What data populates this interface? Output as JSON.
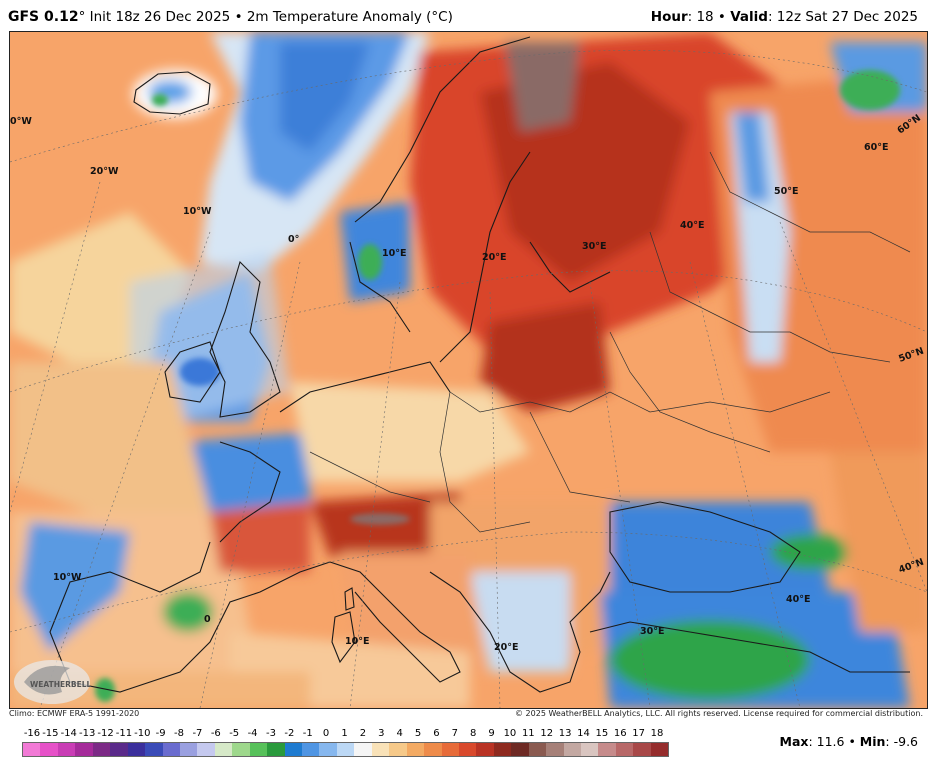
{
  "header": {
    "model": "GFS 0.12",
    "degree": "°",
    "init_text": " Init 18z 26 Dec 2025 • 2m Temperature Anomaly (°C)",
    "hour_label": "Hour",
    "hour_value": ": 18 • ",
    "valid_label": "Valid",
    "valid_value": ": 12z Sat 27 Dec 2025"
  },
  "map": {
    "labels": {
      "lon_30w_60n": "0°W",
      "lon_20w": "20°W",
      "lon_10w_north": "10°W",
      "lon_0_north": "0°",
      "lon_10e_north": "10°E",
      "lon_20e_north": "20°E",
      "lon_30e_north": "30°E",
      "lon_40e_north": "40°E",
      "lon_50e": "50°E",
      "lon_60e": "60°E",
      "lat_60n": "60°N",
      "lat_50n": "50°N",
      "lat_40n": "40°N",
      "lon_10w_south": "10°W",
      "lon_0_south": "0",
      "lon_10e_south": "10°E",
      "lon_20e_south": "20°E",
      "lon_30e_south": "30°E",
      "lon_40e_south": "40°E"
    },
    "logo_text": "WEATHERBELL",
    "colors": {
      "sea_warm": "#f7a469",
      "land_hot": "#d8432a",
      "land_very_hot": "#a0321f",
      "extreme": "#8a6a66",
      "cold_sea": "#4f8fe0",
      "cold_light": "#b8d7f5",
      "near_zero": "#f9ecd0",
      "negative_green": "#2da84a"
    }
  },
  "credits": {
    "climo": "Climo: ECMWF ERA-5 1991-2020",
    "copyright": "© 2025 WeatherBELL Analytics, LLC. All rights reserved. License required for commercial distribution."
  },
  "colorbar": {
    "ticks": [
      "-16",
      "-15",
      "-14",
      "-13",
      "-12",
      "-11",
      "-10",
      "-9",
      "-8",
      "-7",
      "-6",
      "-5",
      "-4",
      "-3",
      "-2",
      "-1",
      "0",
      "1",
      "2",
      "3",
      "4",
      "5",
      "6",
      "7",
      "8",
      "9",
      "10",
      "11",
      "12",
      "13",
      "14",
      "15",
      "16",
      "17",
      "18"
    ],
    "colors": [
      "#f27ad6",
      "#e651c8",
      "#c93db5",
      "#a52b9a",
      "#7c2a86",
      "#5a2a8a",
      "#3b2f9c",
      "#3a4bb8",
      "#6a6ccf",
      "#9aa0e0",
      "#c5c9ef",
      "#d6e9c8",
      "#9ed88c",
      "#57c15a",
      "#2a9a3c",
      "#1e7bd0",
      "#4f95e3",
      "#86b7ee",
      "#bcd8f5",
      "#f5f5f5",
      "#f9e2b8",
      "#f6c989",
      "#f3aa63",
      "#ee8b4a",
      "#e76b39",
      "#d9492c",
      "#b93324",
      "#8e2a1f",
      "#6e2a24",
      "#8a5a50",
      "#a68078",
      "#c3a8a2",
      "#d9c5c0",
      "#c68b8b",
      "#b86868",
      "#a84848",
      "#952c2c"
    ]
  },
  "stats": {
    "max_label": "Max",
    "max_value": ": 11.6 • ",
    "min_label": "Min",
    "min_value": ": -9.6"
  }
}
